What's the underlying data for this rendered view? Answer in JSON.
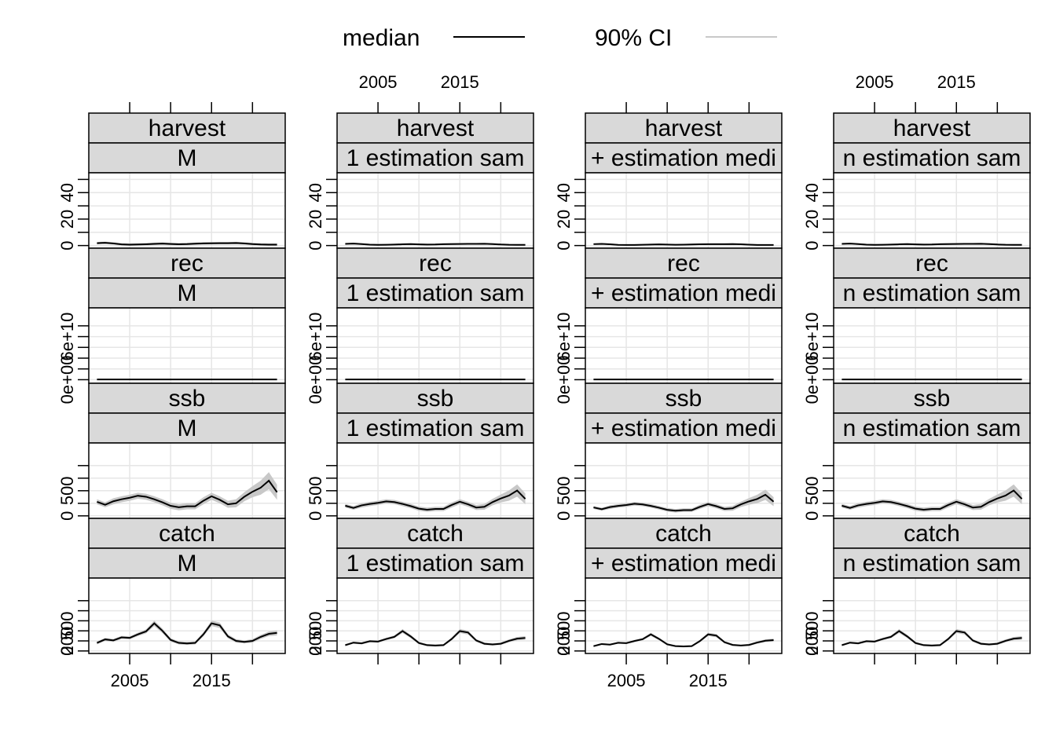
{
  "chart_data": {
    "type": "line",
    "layout": "lattice panels, 4 rows (variable) by 4 columns (scenario)",
    "legend": [
      {
        "label": "median",
        "color": "#000000"
      },
      {
        "label": "90% CI",
        "color": "#c8c8c8"
      }
    ],
    "xlim": [
      2000,
      2024
    ],
    "x_ticks": [
      2005,
      2015
    ],
    "x_minor_ticks": [
      2005,
      2010,
      2015,
      2020
    ],
    "years": [
      2001,
      2002,
      2003,
      2004,
      2005,
      2006,
      2007,
      2008,
      2009,
      2010,
      2011,
      2012,
      2013,
      2014,
      2015,
      2016,
      2017,
      2018,
      2019,
      2020,
      2021,
      2022,
      2023
    ],
    "columns": [
      {
        "label": "M"
      },
      {
        "label": "1 estimation sam"
      },
      {
        "label": "+ estimation medi"
      },
      {
        "label": "n estimation sam"
      }
    ],
    "rows": [
      {
        "variable": "harvest",
        "ylim": [
          -2,
          55
        ],
        "y_ticks": [
          "0",
          "20",
          "40"
        ],
        "y_tick_values": [
          0,
          20,
          40
        ],
        "y_minor_ticks": [
          0,
          10,
          20,
          30,
          40,
          50
        ],
        "median": [
          1.8,
          2.1,
          1.6,
          0.9,
          0.7,
          0.8,
          1.0,
          1.3,
          1.5,
          1.2,
          1.0,
          1.1,
          1.4,
          1.6,
          1.7,
          1.8,
          1.8,
          1.9,
          1.6,
          1.1,
          0.8,
          0.7,
          0.7
        ],
        "ci_width": [
          0.9,
          0.9,
          0.9,
          0.9,
          0.9,
          0.9,
          0.9,
          0.9,
          0.9,
          0.9,
          0.9,
          0.9,
          0.9,
          0.9,
          0.9,
          0.9,
          0.9,
          0.9,
          0.9,
          0.9,
          0.9,
          0.9,
          0.9
        ]
      },
      {
        "variable": "rec",
        "ylim": [
          -5000000000.0,
          100000000000.0
        ],
        "y_ticks": [
          "0e+00",
          "6e+10"
        ],
        "y_tick_values": [
          0,
          60000000000.0
        ],
        "y_minor_ticks": [
          0,
          15000000000.0,
          30000000000.0,
          45000000000.0,
          60000000000.0,
          75000000000.0
        ],
        "median": [
          300000000.0,
          300000000.0,
          300000000.0,
          300000000.0,
          300000000.0,
          300000000.0,
          300000000.0,
          300000000.0,
          300000000.0,
          300000000.0,
          300000000.0,
          300000000.0,
          300000000.0,
          300000000.0,
          300000000.0,
          300000000.0,
          300000000.0,
          300000000.0,
          300000000.0,
          300000000.0,
          300000000.0,
          300000000.0,
          300000000.0
        ],
        "ci_width": [
          0,
          0,
          0,
          0,
          0,
          0,
          0,
          0,
          0,
          0,
          0,
          0,
          0,
          0,
          0,
          0,
          0,
          0,
          0,
          0,
          0,
          0,
          0
        ]
      },
      {
        "variable": "ssb",
        "ylim": [
          -50,
          1450
        ],
        "y_ticks": [
          "0",
          "500"
        ],
        "y_tick_values": [
          0,
          500
        ],
        "y_minor_ticks": [
          0,
          250,
          500,
          750,
          1000
        ],
        "median": [
          280,
          220,
          290,
          330,
          360,
          400,
          380,
          330,
          270,
          200,
          170,
          190,
          190,
          300,
          390,
          320,
          230,
          250,
          380,
          480,
          560,
          700,
          470
        ],
        "ci_width": [
          50,
          50,
          60,
          60,
          60,
          60,
          60,
          60,
          60,
          60,
          60,
          60,
          60,
          70,
          70,
          70,
          70,
          80,
          90,
          110,
          140,
          170,
          150
        ]
      },
      {
        "variable": "catch",
        "ylim": [
          -50,
          1450
        ],
        "y_ticks": [
          "0",
          "200",
          "500"
        ],
        "y_tick_values": [
          0,
          200,
          500
        ],
        "y_minor_ticks": [
          0,
          200,
          400,
          600,
          800,
          1000
        ],
        "median": [
          160,
          230,
          210,
          270,
          260,
          330,
          390,
          550,
          400,
          220,
          160,
          150,
          160,
          330,
          550,
          510,
          290,
          200,
          180,
          200,
          280,
          340,
          360
        ],
        "ci_width": [
          30,
          30,
          30,
          30,
          30,
          35,
          40,
          55,
          45,
          35,
          30,
          30,
          30,
          40,
          55,
          55,
          40,
          35,
          30,
          35,
          40,
          45,
          50
        ]
      }
    ],
    "scale_factors": [
      1.0,
      0.72,
      0.6,
      0.72
    ]
  }
}
